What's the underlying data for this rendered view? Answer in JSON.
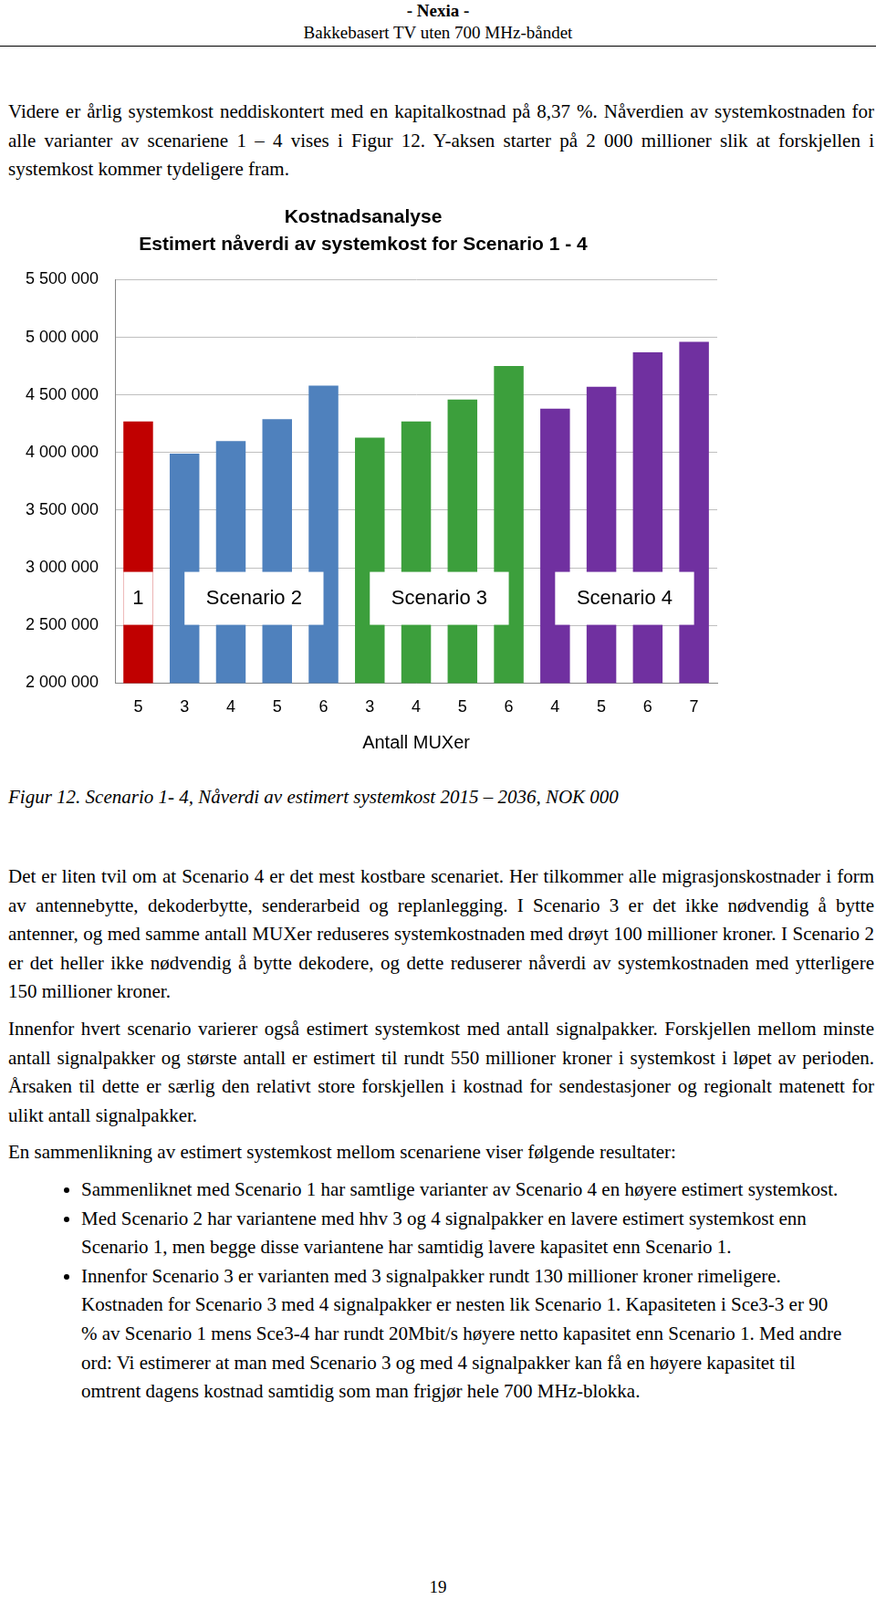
{
  "header": {
    "title": "- Nexia -",
    "subtitle": "Bakkebasert TV uten 700 MHz-båndet"
  },
  "intro": "Videre er årlig systemkost neddiskontert med en kapitalkostnad på 8,37 %. Nåverdien av systemkostnaden for alle varianter av scenariene 1 – 4 vises i Figur 12. Y-aksen starter på 2 000 millioner slik at forskjellen i systemkost kommer tydeligere fram.",
  "chart_data": {
    "type": "bar",
    "title": "Kostnadsanalyse",
    "subtitle": "Estimert nåverdi av systemkost for Scenario 1 - 4",
    "x_label": "Antall MUXer",
    "categories": [
      "5",
      "3",
      "4",
      "5",
      "6",
      "3",
      "4",
      "5",
      "6",
      "4",
      "5",
      "6",
      "7"
    ],
    "series": [
      {
        "name": "1",
        "color": "#c00000",
        "values": [
          4270000,
          null,
          null,
          null,
          null,
          null,
          null,
          null,
          null,
          null,
          null,
          null,
          null
        ]
      },
      {
        "name": "Scenario 2",
        "color": "#4f81bd",
        "values": [
          null,
          3990000,
          4100000,
          4290000,
          4580000,
          null,
          null,
          null,
          null,
          null,
          null,
          null,
          null
        ]
      },
      {
        "name": "Scenario 3",
        "color": "#3c9f3c",
        "values": [
          null,
          null,
          null,
          null,
          null,
          4130000,
          4270000,
          4460000,
          4750000,
          null,
          null,
          null,
          null
        ]
      },
      {
        "name": "Scenario 4",
        "color": "#7030a0",
        "values": [
          null,
          null,
          null,
          null,
          null,
          null,
          null,
          null,
          null,
          4380000,
          4570000,
          4870000,
          4960000
        ]
      }
    ],
    "ylim": [
      2000000,
      5500000
    ],
    "yticks": [
      {
        "value": 2000000,
        "label": "2 000 000"
      },
      {
        "value": 2500000,
        "label": "2 500 000"
      },
      {
        "value": 3000000,
        "label": "3 000 000"
      },
      {
        "value": 3500000,
        "label": "3 500 000"
      },
      {
        "value": 4000000,
        "label": "4 000 000"
      },
      {
        "value": 4500000,
        "label": "4 500 000"
      },
      {
        "value": 5000000,
        "label": "5 000 000"
      },
      {
        "value": 5500000,
        "label": "5 500 000"
      }
    ],
    "grid": true
  },
  "caption": "Figur 12. Scenario 1- 4, Nåverdi av estimert systemkost 2015 – 2036, NOK 000",
  "paragraphs": [
    "Det er liten tvil om at Scenario 4 er det mest kostbare scenariet. Her tilkommer alle migrasjonskostnader i form av antennebytte, dekoderbytte, senderarbeid og replanlegging. I Scenario 3 er det ikke nødvendig å bytte antenner, og med samme antall MUXer reduseres systemkostnaden med drøyt 100 millioner kroner. I Scenario 2 er det heller ikke nødvendig å bytte dekodere, og dette reduserer nåverdi av systemkostnaden med ytterligere 150 millioner kroner.",
    "Innenfor hvert scenario varierer også estimert systemkost med antall signalpakker. Forskjellen mellom minste antall signalpakker og største antall er estimert til rundt 550 millioner kroner i systemkost i løpet av perioden. Årsaken til dette er særlig den relativt store forskjellen i kostnad for sendestasjoner og regionalt matenett for ulikt antall signalpakker.",
    "En sammenlikning av estimert systemkost mellom scenariene viser følgende resultater:"
  ],
  "bullets": [
    "Sammenliknet med Scenario 1 har samtlige varianter av Scenario 4 en høyere estimert systemkost.",
    "Med Scenario 2 har variantene med hhv 3 og 4 signalpakker en lavere estimert systemkost enn Scenario 1, men begge disse variantene har samtidig lavere kapasitet enn Scenario 1.",
    "Innenfor Scenario 3 er varianten med 3 signalpakker rundt 130 millioner kroner rimeligere. Kostnaden for Scenario 3 med 4 signalpakker er nesten lik Scenario 1.  Kapasiteten i Sce3-3 er 90 % av Scenario 1 mens Sce3-4 har rundt 20Mbit/s høyere netto kapasitet enn Scenario 1. Med andre ord: Vi estimerer at man med Scenario 3 og med 4 signalpakker kan få en høyere kapasitet til omtrent dagens kostnad samtidig som man frigjør hele 700 MHz-blokka."
  ],
  "page_number": "19"
}
